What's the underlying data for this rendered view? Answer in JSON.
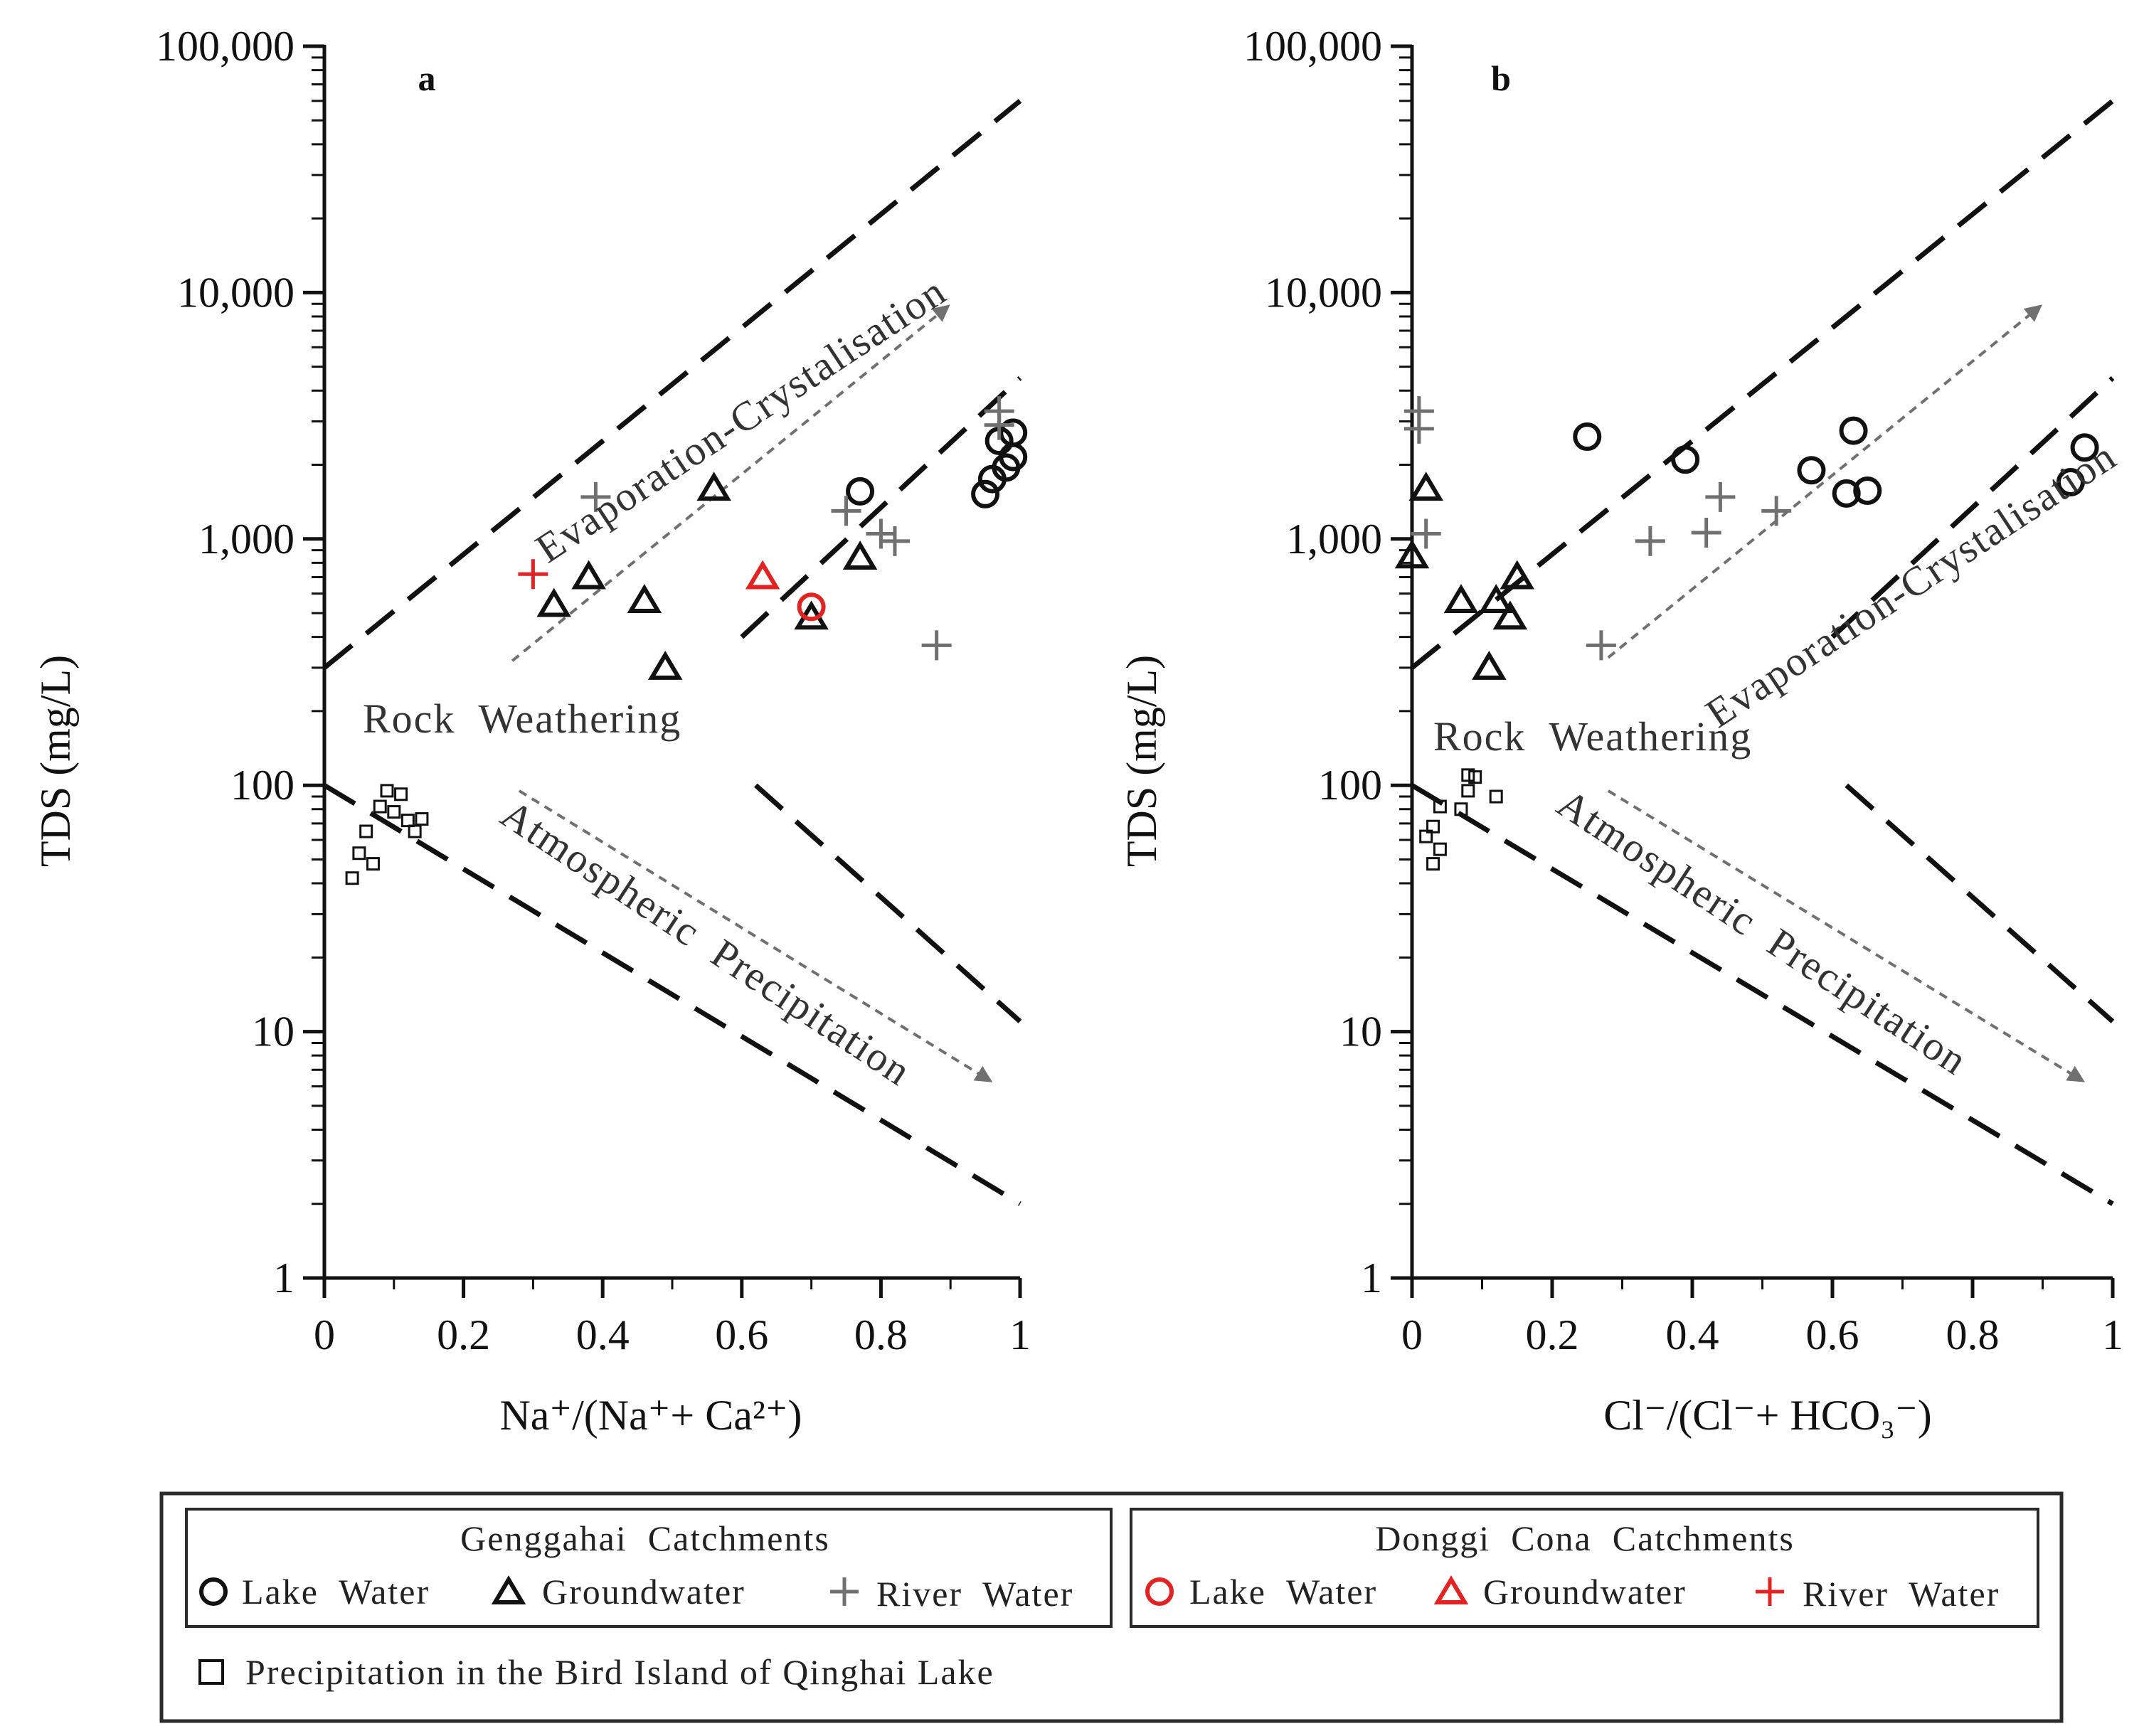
{
  "colors": {
    "black": "#111111",
    "gray": "#707070",
    "red": "#e32222"
  },
  "chart_data": [
    {
      "type": "scatter",
      "panel": "a",
      "ylabel": "TDS (mg/L)",
      "xlabel": "Na⁺/(Na⁺+ Ca²⁺)",
      "xlim": [
        0,
        1
      ],
      "ylim": [
        1,
        100000
      ],
      "yscale": "log",
      "x_ticks": [
        "0",
        "0.2",
        "0.4",
        "0.6",
        "0.8",
        "1"
      ],
      "y_ticks": [
        "1",
        "10",
        "100",
        "1,000",
        "10,000",
        "100,000"
      ],
      "region_labels": [
        "Evaporation-Crystalisation",
        "Rock  Weathering",
        "Atmospheric  Precipitation"
      ],
      "series": [
        {
          "name": "Genggahai Lake Water",
          "marker": "circle",
          "color": "#111111",
          "points": [
            [
              0.95,
              1520
            ],
            [
              0.96,
              1750
            ],
            [
              0.97,
              2500
            ],
            [
              0.98,
              1950
            ],
            [
              0.99,
              2150
            ],
            [
              0.99,
              2700
            ],
            [
              0.77,
              1560
            ]
          ]
        },
        {
          "name": "Genggahai Groundwater",
          "marker": "triangle",
          "color": "#111111",
          "points": [
            [
              0.33,
              540
            ],
            [
              0.38,
              700
            ],
            [
              0.46,
              560
            ],
            [
              0.49,
              300
            ],
            [
              0.56,
              1600
            ],
            [
              0.7,
              480
            ],
            [
              0.77,
              840
            ]
          ]
        },
        {
          "name": "Genggahai River Water",
          "marker": "plus",
          "color": "#707070",
          "points": [
            [
              0.39,
              1480
            ],
            [
              0.75,
              1300
            ],
            [
              0.8,
              1050
            ],
            [
              0.82,
              980
            ],
            [
              0.88,
              370
            ],
            [
              0.97,
              3300
            ],
            [
              0.97,
              2900
            ]
          ]
        },
        {
          "name": "Donggi Cona Lake Water",
          "marker": "circle",
          "color": "#e32222",
          "points": [
            [
              0.7,
              530
            ]
          ]
        },
        {
          "name": "Donggi Cona Groundwater",
          "marker": "triangle",
          "color": "#e32222",
          "points": [
            [
              0.63,
              700
            ]
          ]
        },
        {
          "name": "Donggi Cona River Water",
          "marker": "plus",
          "color": "#e32222",
          "points": [
            [
              0.3,
              720
            ]
          ]
        },
        {
          "name": "Precipitation in the Bird Island of Qinghai Lake",
          "marker": "square",
          "color": "#111111",
          "points": [
            [
              0.04,
              42
            ],
            [
              0.05,
              53
            ],
            [
              0.06,
              65
            ],
            [
              0.07,
              48
            ],
            [
              0.08,
              82
            ],
            [
              0.09,
              95
            ],
            [
              0.1,
              78
            ],
            [
              0.11,
              92
            ],
            [
              0.12,
              72
            ],
            [
              0.13,
              65
            ],
            [
              0.14,
              73
            ]
          ]
        }
      ]
    },
    {
      "type": "scatter",
      "panel": "b",
      "ylabel": "TDS (mg/L)",
      "xlabel": "Cl⁻/(Cl⁻+ HCO₃⁻)",
      "xlim": [
        0,
        1
      ],
      "ylim": [
        1,
        100000
      ],
      "yscale": "log",
      "x_ticks": [
        "0",
        "0.2",
        "0.4",
        "0.6",
        "0.8",
        "1"
      ],
      "y_ticks": [
        "1",
        "10",
        "100",
        "1,000",
        "10,000",
        "100,000"
      ],
      "region_labels": [
        "Evaporation-Crystalisation",
        "Rock  Weathering",
        "Atmospheric  Precipitation"
      ],
      "series": [
        {
          "name": "Genggahai Lake Water",
          "marker": "circle",
          "color": "#111111",
          "points": [
            [
              0.25,
              2600
            ],
            [
              0.39,
              2100
            ],
            [
              0.57,
              1900
            ],
            [
              0.62,
              1530
            ],
            [
              0.63,
              2750
            ],
            [
              0.65,
              1570
            ],
            [
              0.94,
              1700
            ],
            [
              0.96,
              2350
            ]
          ]
        },
        {
          "name": "Genggahai Groundwater",
          "marker": "triangle",
          "color": "#111111",
          "points": [
            [
              0.0,
              850
            ],
            [
              0.02,
              1600
            ],
            [
              0.07,
              560
            ],
            [
              0.11,
              300
            ],
            [
              0.12,
              560
            ],
            [
              0.14,
              480
            ],
            [
              0.15,
              700
            ]
          ]
        },
        {
          "name": "Genggahai River Water",
          "marker": "plus",
          "color": "#707070",
          "points": [
            [
              0.01,
              3300
            ],
            [
              0.01,
              2800
            ],
            [
              0.02,
              1050
            ],
            [
              0.27,
              370
            ],
            [
              0.34,
              980
            ],
            [
              0.42,
              1060
            ],
            [
              0.44,
              1480
            ],
            [
              0.52,
              1300
            ]
          ]
        },
        {
          "name": "Precipitation in the Bird Island of Qinghai Lake",
          "marker": "square",
          "color": "#111111",
          "points": [
            [
              0.02,
              62
            ],
            [
              0.03,
              48
            ],
            [
              0.03,
              68
            ],
            [
              0.04,
              55
            ],
            [
              0.04,
              82
            ],
            [
              0.07,
              80
            ],
            [
              0.08,
              95
            ],
            [
              0.08,
              110
            ],
            [
              0.09,
              108
            ],
            [
              0.12,
              90
            ]
          ]
        }
      ]
    }
  ],
  "legend": {
    "genggahai_title": "Genggahai  Catchments",
    "donggi_title": "Donggi  Cona  Catchments",
    "lake_water": "Lake  Water",
    "groundwater": "Groundwater",
    "river_water": "River  Water",
    "precipitation": "Precipitation in the Bird Island of Qinghai Lake"
  }
}
